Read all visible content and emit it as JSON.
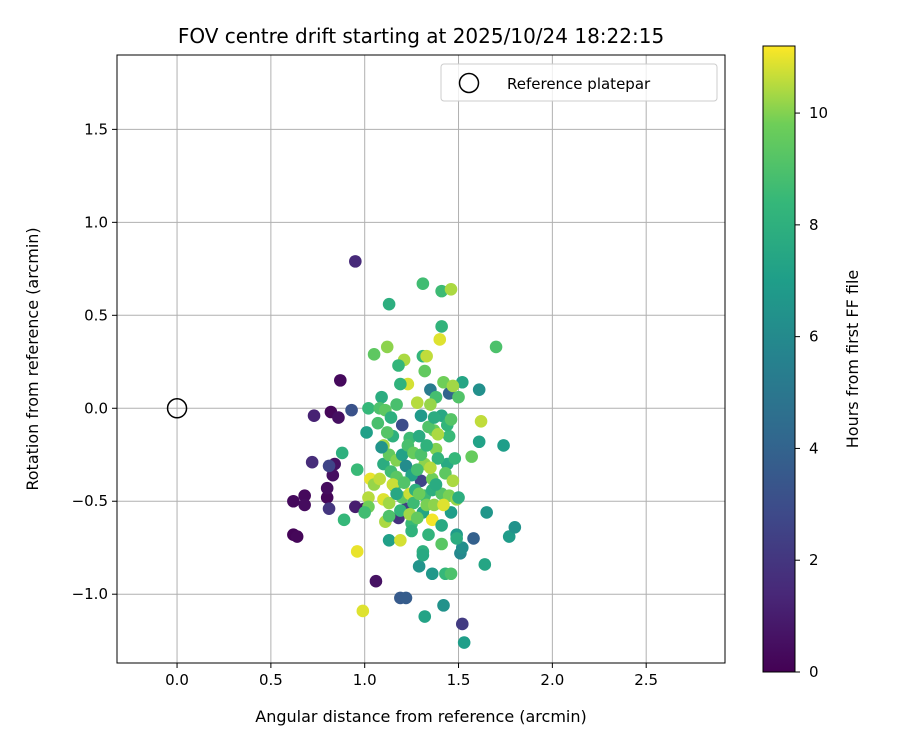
{
  "chart_data": {
    "type": "scatter",
    "title": "FOV centre drift starting at 2025/10/24 18:22:15",
    "xlabel": "Angular distance from reference (arcmin)",
    "ylabel": "Rotation from reference (arcmin)",
    "xlim": [
      -0.32,
      2.92
    ],
    "ylim": [
      -1.37,
      1.9
    ],
    "xticks": [
      0.0,
      0.5,
      1.0,
      1.5,
      2.0,
      2.5
    ],
    "xtick_labels": [
      "0.0",
      "0.5",
      "1.0",
      "1.5",
      "2.0",
      "2.5"
    ],
    "yticks": [
      -1.0,
      -0.5,
      0.0,
      0.5,
      1.0,
      1.5
    ],
    "ytick_labels": [
      "−1.0",
      "−0.5",
      "0.0",
      "0.5",
      "1.0",
      "1.5"
    ],
    "grid": true,
    "legend": {
      "position": "upper right",
      "entries": [
        "Reference platepar"
      ]
    },
    "reference_point": {
      "x": 0.0,
      "y": 0.0,
      "marker": "open circle"
    },
    "colorbar": {
      "label": "Hours from first FF file",
      "range": [
        0,
        11.2
      ],
      "ticks": [
        0,
        2,
        4,
        6,
        8,
        10
      ],
      "tick_labels": [
        "0",
        "2",
        "4",
        "6",
        "8",
        "10"
      ],
      "colormap": "viridis"
    },
    "points": [
      {
        "x": 0.62,
        "y": -0.68,
        "c": 0.1
      },
      {
        "x": 0.64,
        "y": -0.69,
        "c": 0.2
      },
      {
        "x": 0.62,
        "y": -0.5,
        "c": 0.3
      },
      {
        "x": 0.68,
        "y": -0.47,
        "c": 0.3
      },
      {
        "x": 0.68,
        "y": -0.52,
        "c": 0.4
      },
      {
        "x": 0.73,
        "y": -0.04,
        "c": 1.2
      },
      {
        "x": 0.72,
        "y": -0.29,
        "c": 1.6
      },
      {
        "x": 0.8,
        "y": -0.48,
        "c": 0.2
      },
      {
        "x": 0.8,
        "y": -0.43,
        "c": 0.4
      },
      {
        "x": 0.82,
        "y": -0.02,
        "c": 0.2
      },
      {
        "x": 0.83,
        "y": -0.36,
        "c": 0.5
      },
      {
        "x": 0.84,
        "y": -0.3,
        "c": 0.6
      },
      {
        "x": 0.87,
        "y": 0.15,
        "c": 0.3
      },
      {
        "x": 0.86,
        "y": -0.05,
        "c": 0.5
      },
      {
        "x": 0.81,
        "y": -0.31,
        "c": 2.6
      },
      {
        "x": 0.81,
        "y": -0.54,
        "c": 2.0
      },
      {
        "x": 0.95,
        "y": 0.79,
        "c": 1.5
      },
      {
        "x": 0.93,
        "y": -0.01,
        "c": 3.2
      },
      {
        "x": 0.95,
        "y": -0.53,
        "c": 1.0
      },
      {
        "x": 1.06,
        "y": -0.93,
        "c": 0.6
      },
      {
        "x": 1.0,
        "y": -0.54,
        "c": 0.8
      },
      {
        "x": 1.19,
        "y": -1.02,
        "c": 3.6
      },
      {
        "x": 1.22,
        "y": -1.02,
        "c": 3.7
      },
      {
        "x": 1.52,
        "y": -1.16,
        "c": 2.2
      },
      {
        "x": 1.58,
        "y": -0.7,
        "c": 3.9
      },
      {
        "x": 1.22,
        "y": -0.54,
        "c": 2.4
      },
      {
        "x": 1.18,
        "y": -0.59,
        "c": 1.8
      },
      {
        "x": 1.2,
        "y": -0.09,
        "c": 3.0
      },
      {
        "x": 1.3,
        "y": -0.39,
        "c": 2.6
      },
      {
        "x": 1.45,
        "y": 0.08,
        "c": 4.0
      },
      {
        "x": 1.35,
        "y": 0.1,
        "c": 5.2
      },
      {
        "x": 1.42,
        "y": -1.06,
        "c": 6.4
      },
      {
        "x": 1.53,
        "y": -1.26,
        "c": 7.0
      },
      {
        "x": 1.32,
        "y": -1.12,
        "c": 7.3
      },
      {
        "x": 1.36,
        "y": -0.89,
        "c": 6.7
      },
      {
        "x": 1.29,
        "y": -0.85,
        "c": 6.5
      },
      {
        "x": 1.51,
        "y": -0.78,
        "c": 5.9
      },
      {
        "x": 1.52,
        "y": -0.75,
        "c": 6.2
      },
      {
        "x": 1.49,
        "y": -0.68,
        "c": 6.8
      },
      {
        "x": 1.64,
        "y": -0.84,
        "c": 7.4
      },
      {
        "x": 1.65,
        "y": -0.56,
        "c": 6.6
      },
      {
        "x": 1.77,
        "y": -0.69,
        "c": 6.9
      },
      {
        "x": 1.8,
        "y": -0.64,
        "c": 6.4
      },
      {
        "x": 1.74,
        "y": -0.2,
        "c": 7.0
      },
      {
        "x": 1.61,
        "y": -0.18,
        "c": 7.2
      },
      {
        "x": 1.61,
        "y": 0.1,
        "c": 6.3
      },
      {
        "x": 1.52,
        "y": 0.14,
        "c": 7.4
      },
      {
        "x": 1.13,
        "y": 0.56,
        "c": 7.9
      },
      {
        "x": 1.41,
        "y": 0.44,
        "c": 8.2
      },
      {
        "x": 1.7,
        "y": 0.33,
        "c": 9.0
      },
      {
        "x": 1.41,
        "y": 0.63,
        "c": 8.6
      },
      {
        "x": 1.31,
        "y": 0.67,
        "c": 8.7
      },
      {
        "x": 1.46,
        "y": 0.64,
        "c": 10.4
      },
      {
        "x": 1.31,
        "y": 0.28,
        "c": 8.3
      },
      {
        "x": 1.05,
        "y": 0.29,
        "c": 9.4
      },
      {
        "x": 1.12,
        "y": 0.33,
        "c": 10.1
      },
      {
        "x": 1.21,
        "y": 0.26,
        "c": 10.4
      },
      {
        "x": 1.33,
        "y": 0.28,
        "c": 10.6
      },
      {
        "x": 1.4,
        "y": 0.37,
        "c": 10.9
      },
      {
        "x": 1.18,
        "y": 0.23,
        "c": 8.3
      },
      {
        "x": 1.32,
        "y": 0.2,
        "c": 9.5
      },
      {
        "x": 1.23,
        "y": 0.13,
        "c": 10.8
      },
      {
        "x": 1.38,
        "y": 0.06,
        "c": 8.8
      },
      {
        "x": 1.42,
        "y": 0.14,
        "c": 9.8
      },
      {
        "x": 1.47,
        "y": 0.12,
        "c": 10.3
      },
      {
        "x": 1.09,
        "y": 0.06,
        "c": 7.8
      },
      {
        "x": 1.19,
        "y": 0.13,
        "c": 8.1
      },
      {
        "x": 1.02,
        "y": 0.0,
        "c": 8.4
      },
      {
        "x": 1.08,
        "y": 0.0,
        "c": 9.0
      },
      {
        "x": 1.11,
        "y": -0.01,
        "c": 9.4
      },
      {
        "x": 1.17,
        "y": 0.02,
        "c": 8.9
      },
      {
        "x": 1.28,
        "y": 0.03,
        "c": 10.5
      },
      {
        "x": 1.35,
        "y": 0.02,
        "c": 10.2
      },
      {
        "x": 1.3,
        "y": -0.04,
        "c": 6.8
      },
      {
        "x": 1.41,
        "y": -0.04,
        "c": 7.5
      },
      {
        "x": 1.01,
        "y": -0.13,
        "c": 7.1
      },
      {
        "x": 1.1,
        "y": -0.2,
        "c": 10.3
      },
      {
        "x": 1.15,
        "y": -0.15,
        "c": 8.0
      },
      {
        "x": 1.24,
        "y": -0.16,
        "c": 8.6
      },
      {
        "x": 1.37,
        "y": -0.12,
        "c": 9.7
      },
      {
        "x": 1.45,
        "y": -0.15,
        "c": 8.5
      },
      {
        "x": 1.5,
        "y": 0.06,
        "c": 9.1
      },
      {
        "x": 1.57,
        "y": -0.26,
        "c": 9.6
      },
      {
        "x": 1.62,
        "y": -0.07,
        "c": 10.6
      },
      {
        "x": 1.38,
        "y": -0.22,
        "c": 10.0
      },
      {
        "x": 1.44,
        "y": -0.3,
        "c": 7.6
      },
      {
        "x": 1.48,
        "y": -0.27,
        "c": 8.4
      },
      {
        "x": 0.96,
        "y": -0.33,
        "c": 8.5
      },
      {
        "x": 0.88,
        "y": -0.24,
        "c": 8.0
      },
      {
        "x": 0.89,
        "y": -0.6,
        "c": 8.4
      },
      {
        "x": 1.03,
        "y": -0.38,
        "c": 11.0
      },
      {
        "x": 1.05,
        "y": -0.41,
        "c": 10.2
      },
      {
        "x": 1.08,
        "y": -0.38,
        "c": 10.6
      },
      {
        "x": 1.1,
        "y": -0.3,
        "c": 7.8
      },
      {
        "x": 1.13,
        "y": -0.25,
        "c": 9.5
      },
      {
        "x": 1.17,
        "y": -0.28,
        "c": 10.0
      },
      {
        "x": 1.02,
        "y": -0.48,
        "c": 10.5
      },
      {
        "x": 1.02,
        "y": -0.53,
        "c": 9.8
      },
      {
        "x": 1.0,
        "y": -0.56,
        "c": 8.7
      },
      {
        "x": 1.1,
        "y": -0.49,
        "c": 10.9
      },
      {
        "x": 1.13,
        "y": -0.51,
        "c": 10.3
      },
      {
        "x": 1.16,
        "y": -0.42,
        "c": 8.9
      },
      {
        "x": 1.2,
        "y": -0.48,
        "c": 9.4
      },
      {
        "x": 1.24,
        "y": -0.46,
        "c": 10.7
      },
      {
        "x": 1.27,
        "y": -0.44,
        "c": 8.0
      },
      {
        "x": 1.32,
        "y": -0.47,
        "c": 8.6
      },
      {
        "x": 1.36,
        "y": -0.44,
        "c": 7.9
      },
      {
        "x": 1.41,
        "y": -0.46,
        "c": 9.2
      },
      {
        "x": 1.45,
        "y": -0.47,
        "c": 9.9
      },
      {
        "x": 1.49,
        "y": -0.49,
        "c": 10.2
      },
      {
        "x": 1.11,
        "y": -0.61,
        "c": 10.4
      },
      {
        "x": 1.13,
        "y": -0.58,
        "c": 9.0
      },
      {
        "x": 1.19,
        "y": -0.55,
        "c": 8.3
      },
      {
        "x": 1.25,
        "y": -0.62,
        "c": 8.5
      },
      {
        "x": 1.31,
        "y": -0.56,
        "c": 7.4
      },
      {
        "x": 1.36,
        "y": -0.6,
        "c": 11.1
      },
      {
        "x": 1.41,
        "y": -0.63,
        "c": 7.6
      },
      {
        "x": 1.46,
        "y": -0.56,
        "c": 7.0
      },
      {
        "x": 1.49,
        "y": -0.7,
        "c": 7.8
      },
      {
        "x": 1.41,
        "y": -0.73,
        "c": 9.3
      },
      {
        "x": 1.31,
        "y": -0.77,
        "c": 8.0
      },
      {
        "x": 1.31,
        "y": -0.79,
        "c": 7.6
      },
      {
        "x": 1.43,
        "y": -0.89,
        "c": 8.4
      },
      {
        "x": 1.46,
        "y": -0.89,
        "c": 9.0
      },
      {
        "x": 1.13,
        "y": -0.71,
        "c": 7.1
      },
      {
        "x": 1.19,
        "y": -0.71,
        "c": 10.8
      },
      {
        "x": 0.96,
        "y": -0.77,
        "c": 11.0
      },
      {
        "x": 0.99,
        "y": -1.09,
        "c": 10.9
      },
      {
        "x": 1.09,
        "y": -0.21,
        "c": 6.5
      },
      {
        "x": 1.12,
        "y": -0.13,
        "c": 9.2
      },
      {
        "x": 1.2,
        "y": -0.25,
        "c": 7.2
      },
      {
        "x": 1.23,
        "y": -0.2,
        "c": 8.9
      },
      {
        "x": 1.26,
        "y": -0.24,
        "c": 9.6
      },
      {
        "x": 1.29,
        "y": -0.15,
        "c": 7.7
      },
      {
        "x": 1.32,
        "y": -0.3,
        "c": 10.1
      },
      {
        "x": 1.34,
        "y": -0.1,
        "c": 9.1
      },
      {
        "x": 1.36,
        "y": -0.38,
        "c": 9.8
      },
      {
        "x": 1.39,
        "y": -0.27,
        "c": 8.2
      },
      {
        "x": 1.14,
        "y": -0.34,
        "c": 8.7
      },
      {
        "x": 1.17,
        "y": -0.37,
        "c": 9.3
      },
      {
        "x": 1.22,
        "y": -0.31,
        "c": 6.1
      },
      {
        "x": 1.25,
        "y": -0.36,
        "c": 7.3
      },
      {
        "x": 1.28,
        "y": -0.33,
        "c": 8.8
      },
      {
        "x": 1.3,
        "y": -0.25,
        "c": 9.0
      },
      {
        "x": 1.33,
        "y": -0.2,
        "c": 8.1
      },
      {
        "x": 1.35,
        "y": -0.32,
        "c": 10.5
      },
      {
        "x": 1.38,
        "y": -0.41,
        "c": 7.7
      },
      {
        "x": 1.43,
        "y": -0.35,
        "c": 9.4
      },
      {
        "x": 1.07,
        "y": -0.08,
        "c": 8.9
      },
      {
        "x": 1.14,
        "y": -0.05,
        "c": 8.0
      },
      {
        "x": 1.15,
        "y": -0.41,
        "c": 10.7
      },
      {
        "x": 1.17,
        "y": -0.46,
        "c": 7.5
      },
      {
        "x": 1.21,
        "y": -0.4,
        "c": 9.1
      },
      {
        "x": 1.26,
        "y": -0.51,
        "c": 8.6
      },
      {
        "x": 1.29,
        "y": -0.46,
        "c": 9.7
      },
      {
        "x": 1.33,
        "y": -0.52,
        "c": 9.9
      },
      {
        "x": 1.37,
        "y": -0.52,
        "c": 10.1
      },
      {
        "x": 1.42,
        "y": -0.52,
        "c": 10.9
      },
      {
        "x": 1.47,
        "y": -0.39,
        "c": 10.4
      },
      {
        "x": 1.5,
        "y": -0.48,
        "c": 7.9
      },
      {
        "x": 1.24,
        "y": -0.57,
        "c": 10.3
      },
      {
        "x": 1.28,
        "y": -0.59,
        "c": 9.5
      },
      {
        "x": 1.25,
        "y": -0.66,
        "c": 8.1
      },
      {
        "x": 1.34,
        "y": -0.68,
        "c": 8.2
      },
      {
        "x": 1.37,
        "y": -0.05,
        "c": 7.8
      },
      {
        "x": 1.39,
        "y": -0.14,
        "c": 10.4
      },
      {
        "x": 1.44,
        "y": -0.09,
        "c": 8.3
      },
      {
        "x": 1.46,
        "y": -0.06,
        "c": 9.2
      }
    ]
  }
}
